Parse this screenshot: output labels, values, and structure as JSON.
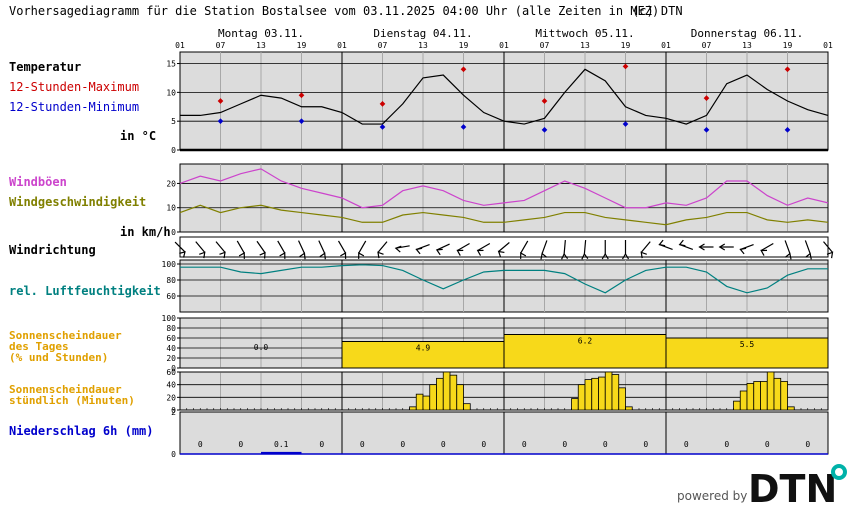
{
  "header": {
    "title": "Vorhersagediagramm für die Station Bostalsee vom 03.11.2025 04:00 Uhr (alle Zeiten in MEZ)",
    "copyright": "(c) DTN"
  },
  "days": [
    "Montag 03.11.",
    "Dienstag 04.11.",
    "Mittwoch 05.11.",
    "Donnerstag 06.11."
  ],
  "hour_ticks": [
    "01",
    "07",
    "13",
    "19",
    "01",
    "07",
    "13",
    "19",
    "01",
    "07",
    "13",
    "19",
    "01",
    "07",
    "13",
    "19",
    "01"
  ],
  "labels": {
    "temperatur": "Temperatur",
    "tmax": "12-Stunden-Maximum",
    "tmin": "12-Stunden-Minimum",
    "temp_unit": "in °C",
    "windboeen": "Windböen",
    "windgeschw": "Windgeschwindigkeit",
    "wind_unit": "in km/h",
    "windrichtung": "Windrichtung",
    "feuchte": "rel. Luftfeuchtigkeit",
    "sonne_tag_1": "Sonnenscheindauer",
    "sonne_tag_2": "des Tages",
    "sonne_tag_3": "(% und Stunden)",
    "sonne_std_1": "Sonnenscheindauer",
    "sonne_std_2": "stündlich (Minuten)",
    "niederschlag": "Niederschlag 6h (mm)"
  },
  "colors": {
    "panel_bg": "#dcdcdc",
    "temp_line": "#000000",
    "tmax": "#cc0000",
    "tmin": "#0000cc",
    "gust": "#cc44cc",
    "wind": "#808000",
    "humidity": "#008080",
    "sun": "#f7d91a",
    "sun_label": "#e0a000",
    "precip": "#0000cc"
  },
  "footer": {
    "powered": "powered by",
    "logo": "DTN"
  },
  "chart_data": [
    {
      "type": "line",
      "name": "temperature",
      "x_hours": [
        0,
        3,
        6,
        9,
        12,
        15,
        18,
        21,
        24,
        27,
        30,
        33,
        36,
        39,
        42,
        45,
        48,
        51,
        54,
        57,
        60,
        63,
        66,
        69,
        72,
        75,
        78,
        81,
        84,
        87,
        90,
        93,
        96
      ],
      "values": [
        6,
        6,
        6.5,
        8,
        9.5,
        9,
        7.5,
        7.5,
        6.5,
        4.5,
        4.5,
        8,
        12.5,
        13,
        9.5,
        6.5,
        5,
        4.5,
        5.5,
        10,
        14,
        12,
        7.5,
        6,
        5.5,
        4.5,
        6,
        11.5,
        13,
        10.5,
        8.5,
        7,
        6
      ],
      "ylim": [
        0,
        17
      ],
      "yticks": [
        0,
        5,
        10,
        15
      ],
      "tmax": {
        "x_hours": [
          6,
          18,
          30,
          42,
          54,
          66,
          78,
          90
        ],
        "values": [
          8.5,
          9.5,
          8,
          14,
          8.5,
          14.5,
          9,
          14
        ]
      },
      "tmin": {
        "x_hours": [
          6,
          18,
          30,
          42,
          54,
          66,
          78,
          90
        ],
        "values": [
          5,
          5,
          4,
          4,
          3.5,
          4.5,
          3.5,
          3.5
        ]
      }
    },
    {
      "type": "line",
      "name": "wind",
      "x_hours": [
        0,
        3,
        6,
        9,
        12,
        15,
        18,
        21,
        24,
        27,
        30,
        33,
        36,
        39,
        42,
        45,
        48,
        51,
        54,
        57,
        60,
        63,
        66,
        69,
        72,
        75,
        78,
        81,
        84,
        87,
        90,
        93,
        96
      ],
      "gusts": [
        20,
        23,
        21,
        24,
        26,
        21,
        18,
        16,
        14,
        10,
        11,
        17,
        19,
        17,
        13,
        11,
        12,
        13,
        17,
        21,
        18,
        14,
        10,
        10,
        12,
        11,
        14,
        21,
        21,
        15,
        11,
        14,
        12
      ],
      "speed": [
        8,
        11,
        8,
        10,
        11,
        9,
        8,
        7,
        6,
        4,
        4,
        7,
        8,
        7,
        6,
        4,
        4,
        5,
        6,
        8,
        8,
        6,
        5,
        4,
        3,
        5,
        6,
        8,
        8,
        5,
        4,
        5,
        4
      ],
      "ylim": [
        0,
        28
      ],
      "yticks": [
        0,
        10,
        20
      ]
    },
    {
      "type": "table",
      "name": "wind_direction",
      "x_hours": [
        0,
        3,
        6,
        9,
        12,
        15,
        18,
        21,
        24,
        27,
        30,
        33,
        36,
        39,
        42,
        45,
        48,
        51,
        54,
        57,
        60,
        63,
        66,
        69,
        72,
        75,
        78,
        81,
        84,
        87,
        90,
        93,
        96
      ],
      "direction_deg": [
        45,
        40,
        40,
        30,
        35,
        30,
        25,
        25,
        30,
        330,
        320,
        280,
        290,
        295,
        300,
        300,
        310,
        330,
        340,
        355,
        355,
        0,
        0,
        320,
        250,
        250,
        270,
        270,
        290,
        300,
        20,
        20,
        40
      ]
    },
    {
      "type": "line",
      "name": "humidity",
      "x_hours": [
        0,
        3,
        6,
        9,
        12,
        15,
        18,
        21,
        24,
        27,
        30,
        33,
        36,
        39,
        42,
        45,
        48,
        51,
        54,
        57,
        60,
        63,
        66,
        69,
        72,
        75,
        78,
        81,
        84,
        87,
        90,
        93,
        96
      ],
      "values": [
        96,
        96,
        96,
        90,
        88,
        92,
        96,
        96,
        98,
        99,
        98,
        92,
        80,
        69,
        80,
        90,
        92,
        92,
        92,
        88,
        75,
        64,
        80,
        92,
        96,
        96,
        90,
        72,
        64,
        70,
        86,
        94,
        94
      ],
      "ylim": [
        40,
        105
      ],
      "yticks": [
        60,
        80,
        100
      ]
    },
    {
      "type": "bar",
      "name": "sunshine_daily",
      "categories": [
        "Montag 03.11.",
        "Dienstag 04.11.",
        "Mittwoch 05.11.",
        "Donnerstag 06.11."
      ],
      "percent": [
        0,
        53,
        67,
        60
      ],
      "hours": [
        "0.0",
        "4.9",
        "6.2",
        "5.5"
      ],
      "ylim": [
        0,
        100
      ],
      "yticks": [
        0,
        20,
        40,
        60,
        80,
        100
      ]
    },
    {
      "type": "bar",
      "name": "sunshine_hourly",
      "x_hours": [
        34,
        35,
        36,
        37,
        38,
        39,
        40,
        41,
        42,
        58,
        59,
        60,
        61,
        62,
        63,
        64,
        65,
        66,
        82,
        83,
        84,
        85,
        86,
        87,
        88,
        89,
        90
      ],
      "minutes": [
        5,
        25,
        22,
        40,
        50,
        60,
        55,
        40,
        10,
        18,
        40,
        48,
        50,
        52,
        60,
        56,
        35,
        5,
        14,
        30,
        42,
        45,
        45,
        60,
        50,
        45,
        5
      ],
      "ylim": [
        0,
        60
      ],
      "yticks": [
        0,
        20,
        40,
        60
      ]
    },
    {
      "type": "bar",
      "name": "precipitation_6h",
      "x_hours": [
        0,
        6,
        12,
        18,
        24,
        30,
        36,
        42,
        48,
        54,
        60,
        66,
        72,
        78,
        84,
        90
      ],
      "values": [
        0,
        0,
        0.1,
        0,
        0,
        0,
        0,
        0,
        0,
        0,
        0,
        0,
        0,
        0,
        0,
        0
      ],
      "labels": [
        "0",
        "0",
        "0.1",
        "0",
        "0",
        "0",
        "0",
        "0",
        "0",
        "0",
        "0",
        "0",
        "0",
        "0",
        "0",
        "0"
      ],
      "ylim": [
        0,
        2
      ],
      "yticks": [
        0,
        2
      ]
    }
  ]
}
